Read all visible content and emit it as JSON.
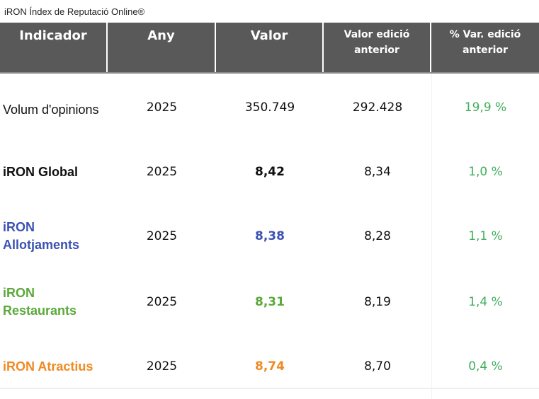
{
  "caption": "iRON Índex de Reputació Online®",
  "colors": {
    "header_bg": "#595959",
    "header_text": "#ffffff",
    "black": "#111111",
    "allotjaments": "#3c52b3",
    "restaurants": "#5aa93a",
    "atractius": "#f08a24",
    "variation": "#3fae5c"
  },
  "headers": {
    "indicador": "Indicador",
    "any": "Any",
    "valor": "Valor",
    "valor_anterior": "Valor edició anterior",
    "var_anterior": "% Var. edició anterior"
  },
  "rows": [
    {
      "indicador": "Volum d'opinions",
      "any": "2025",
      "valor": "350.749",
      "valor_anterior": "292.428",
      "var": "19,9 %"
    },
    {
      "indicador": "iRON Global",
      "any": "2025",
      "valor": "8,42",
      "valor_anterior": "8,34",
      "var": "1,0 %"
    },
    {
      "indicador": "iRON Allotjaments",
      "any": "2025",
      "valor": "8,38",
      "valor_anterior": "8,28",
      "var": "1,1 %"
    },
    {
      "indicador": "iRON Restaurants",
      "any": "2025",
      "valor": "8,31",
      "valor_anterior": "8,19",
      "var": "1,4 %"
    },
    {
      "indicador": "iRON Atractius",
      "any": "2025",
      "valor": "8,74",
      "valor_anterior": "8,70",
      "var": "0,4 %"
    }
  ]
}
